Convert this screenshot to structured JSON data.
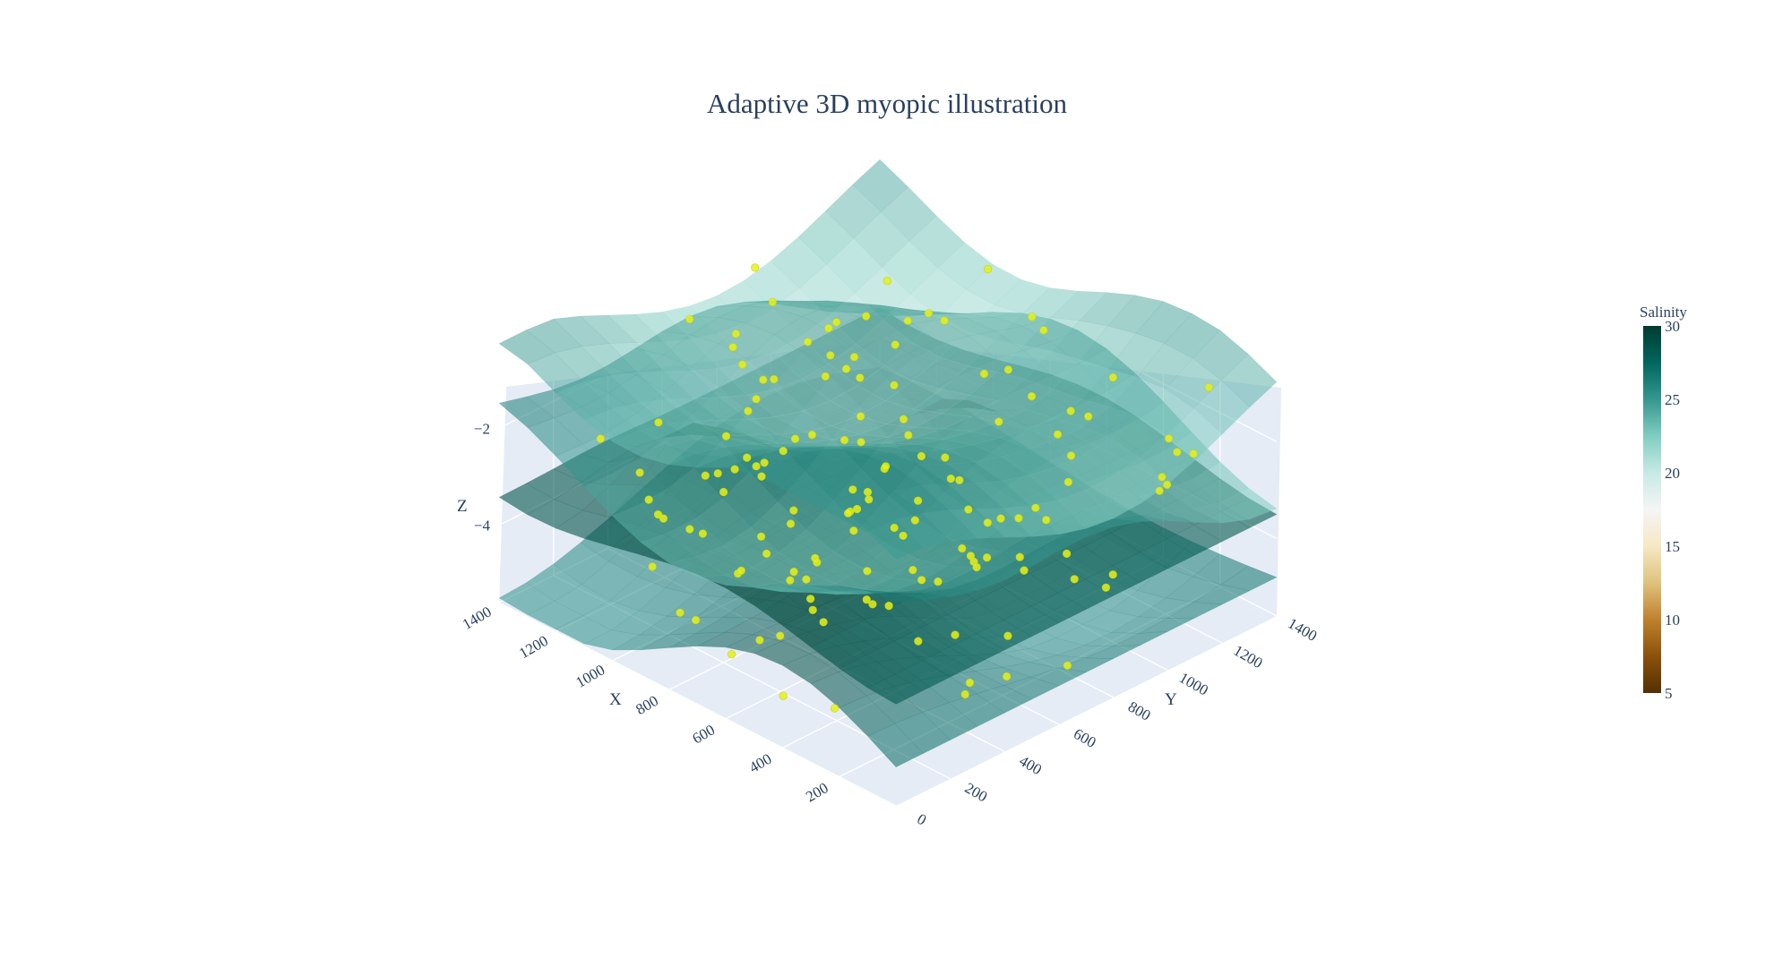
{
  "chart_data": {
    "type": "surface",
    "title": "Adaptive 3D myopic illustration",
    "scene": {
      "xaxis": {
        "title": "X",
        "ticks": [
          200,
          400,
          600,
          800,
          1000,
          1200,
          1400
        ],
        "range": [
          0,
          1400
        ]
      },
      "yaxis": {
        "title": "Y",
        "ticks": [
          0,
          200,
          400,
          600,
          800,
          1000,
          1200,
          1400
        ],
        "range": [
          0,
          1400
        ]
      },
      "zaxis": {
        "title": "Z",
        "ticks": [
          -4,
          -2
        ],
        "range": [
          -5.6,
          -0.2
        ]
      },
      "background_color": "#e5ecf6",
      "grid": true
    },
    "series": [
      {
        "type": "surface",
        "description_level": -4.8,
        "salinity": 27,
        "opacity": 0.55
      },
      {
        "type": "surface",
        "description_level": -3.2,
        "salinity": 29,
        "opacity": 0.6
      },
      {
        "type": "surface",
        "description_level": -2.2,
        "salinity": 25,
        "opacity": 0.55
      },
      {
        "type": "surface",
        "description_level": -1.2,
        "salinity": 23,
        "opacity": 0.5
      },
      {
        "type": "scatter3d",
        "color": "#e5f11a",
        "description": "sample points"
      }
    ],
    "colorbar": {
      "title": "Salinity",
      "ticks": [
        5,
        10,
        15,
        20,
        25,
        30
      ],
      "range": [
        5,
        30
      ],
      "colorscale": [
        "#543005",
        "#8c510a",
        "#bf812d",
        "#dfc27d",
        "#f6e8c3",
        "#f5f5f5",
        "#c7eae5",
        "#80cdc1",
        "#35978f",
        "#01665e",
        "#003c30"
      ]
    }
  }
}
